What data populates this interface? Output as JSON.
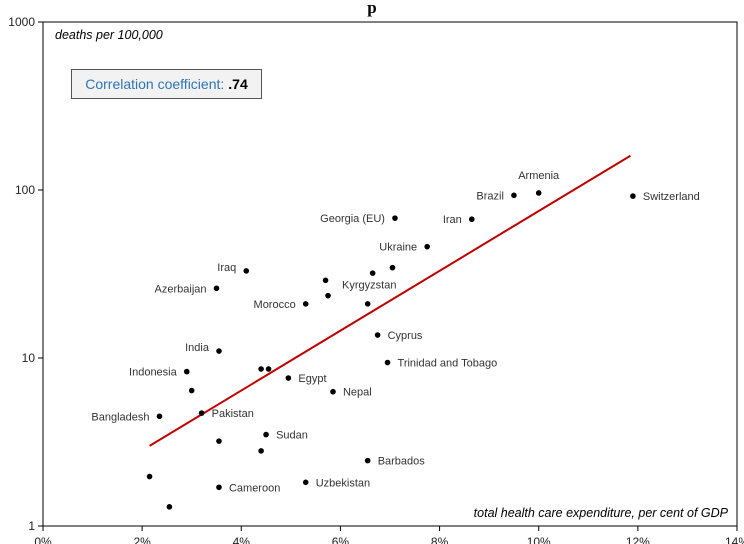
{
  "chart_data": {
    "type": "scatter",
    "title": "p",
    "xlabel": "total health care expenditure, per cent of GDP",
    "ylabel": "deaths per 100,000",
    "xlim": [
      0,
      14
    ],
    "ylim": [
      1,
      1000
    ],
    "y_scale": "log",
    "x_ticks": [
      "0%",
      "2%",
      "4%",
      "6%",
      "8%",
      "10%",
      "12%",
      "14%"
    ],
    "y_ticks": [
      "1",
      "10",
      "100",
      "1000"
    ],
    "grid": false,
    "annotation": {
      "label": "Correlation coefficient:",
      "value": ".74"
    },
    "trendline": {
      "color": "#c00000",
      "points": [
        [
          2.15,
          3.0
        ],
        [
          11.85,
          160
        ]
      ]
    },
    "points": [
      {
        "x": 11.9,
        "y": 92,
        "label": "Switzerland"
      },
      {
        "x": 10.0,
        "y": 96,
        "label": "Armenia"
      },
      {
        "x": 9.5,
        "y": 93,
        "label": "Brazil"
      },
      {
        "x": 8.65,
        "y": 67,
        "label": "Iran"
      },
      {
        "x": 7.1,
        "y": 68,
        "label": "Georgia (EU)"
      },
      {
        "x": 7.75,
        "y": 46,
        "label": "Ukraine"
      },
      {
        "x": 7.05,
        "y": 34.5,
        "label": ""
      },
      {
        "x": 6.65,
        "y": 32,
        "label": ""
      },
      {
        "x": 5.7,
        "y": 29,
        "label": ""
      },
      {
        "x": 5.75,
        "y": 23.5,
        "label": "Kyrgyzstan"
      },
      {
        "x": 5.3,
        "y": 21,
        "label": "Morocco"
      },
      {
        "x": 6.55,
        "y": 21,
        "label": ""
      },
      {
        "x": 4.1,
        "y": 33,
        "label": "Iraq"
      },
      {
        "x": 3.5,
        "y": 26,
        "label": "Azerbaijan"
      },
      {
        "x": 6.75,
        "y": 13.7,
        "label": "Cyprus"
      },
      {
        "x": 3.55,
        "y": 11,
        "label": "India"
      },
      {
        "x": 6.95,
        "y": 9.4,
        "label": "Trinidad and Tobago"
      },
      {
        "x": 4.4,
        "y": 8.6,
        "label": ""
      },
      {
        "x": 4.55,
        "y": 8.6,
        "label": ""
      },
      {
        "x": 4.95,
        "y": 7.6,
        "label": "Egypt"
      },
      {
        "x": 2.9,
        "y": 8.3,
        "label": "Indonesia"
      },
      {
        "x": 3.0,
        "y": 6.4,
        "label": ""
      },
      {
        "x": 5.85,
        "y": 6.3,
        "label": "Nepal"
      },
      {
        "x": 3.2,
        "y": 4.7,
        "label": "Pakistan"
      },
      {
        "x": 2.35,
        "y": 4.5,
        "label": "Bangladesh"
      },
      {
        "x": 4.5,
        "y": 3.5,
        "label": "Sudan"
      },
      {
        "x": 3.55,
        "y": 3.2,
        "label": ""
      },
      {
        "x": 4.4,
        "y": 2.8,
        "label": ""
      },
      {
        "x": 6.55,
        "y": 2.45,
        "label": "Barbados"
      },
      {
        "x": 2.15,
        "y": 1.97,
        "label": ""
      },
      {
        "x": 5.3,
        "y": 1.82,
        "label": "Uzbekistan"
      },
      {
        "x": 3.55,
        "y": 1.7,
        "label": "Cameroon"
      },
      {
        "x": 2.55,
        "y": 1.3,
        "label": ""
      }
    ]
  }
}
